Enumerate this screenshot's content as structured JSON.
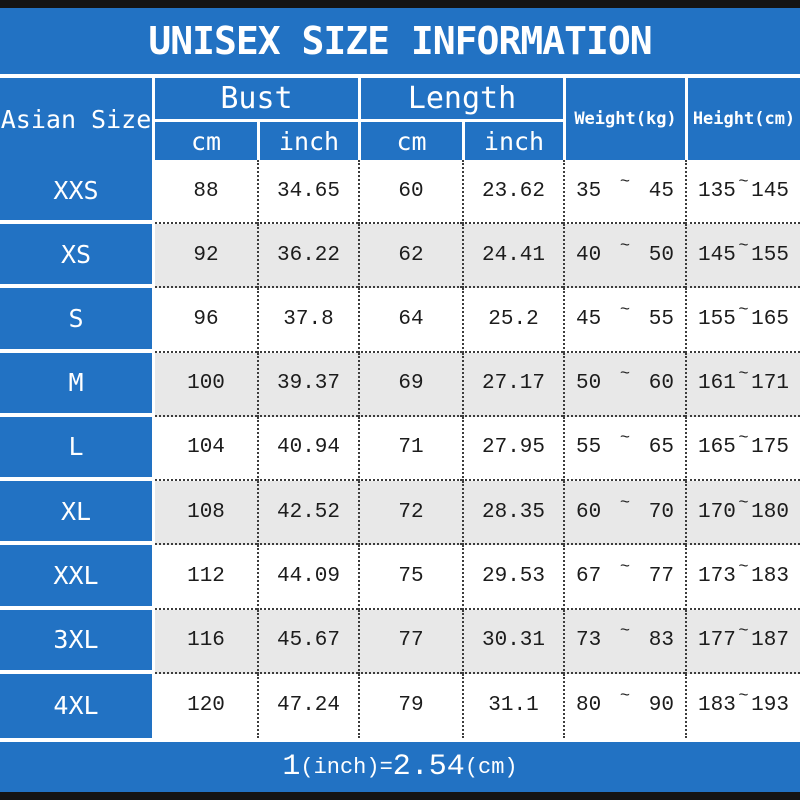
{
  "title": "UNISEX SIZE INFORMATION",
  "header": {
    "size": "Asian Size",
    "bust": "Bust",
    "length": "Length",
    "weight": "Weight(kg)",
    "height": "Height(cm)",
    "cm": "cm",
    "inch": "inch"
  },
  "symbols": {
    "tilde": "~"
  },
  "rows": [
    {
      "size": "XXS",
      "bust_cm": "88",
      "bust_inch": "34.65",
      "length_cm": "60",
      "length_inch": "23.62",
      "weight_min": "35",
      "weight_max": "45",
      "height_min": "135",
      "height_max": "145"
    },
    {
      "size": "XS",
      "bust_cm": "92",
      "bust_inch": "36.22",
      "length_cm": "62",
      "length_inch": "24.41",
      "weight_min": "40",
      "weight_max": "50",
      "height_min": "145",
      "height_max": "155"
    },
    {
      "size": "S",
      "bust_cm": "96",
      "bust_inch": "37.8",
      "length_cm": "64",
      "length_inch": "25.2",
      "weight_min": "45",
      "weight_max": "55",
      "height_min": "155",
      "height_max": "165"
    },
    {
      "size": "M",
      "bust_cm": "100",
      "bust_inch": "39.37",
      "length_cm": "69",
      "length_inch": "27.17",
      "weight_min": "50",
      "weight_max": "60",
      "height_min": "161",
      "height_max": "171"
    },
    {
      "size": "L",
      "bust_cm": "104",
      "bust_inch": "40.94",
      "length_cm": "71",
      "length_inch": "27.95",
      "weight_min": "55",
      "weight_max": "65",
      "height_min": "165",
      "height_max": "175"
    },
    {
      "size": "XL",
      "bust_cm": "108",
      "bust_inch": "42.52",
      "length_cm": "72",
      "length_inch": "28.35",
      "weight_min": "60",
      "weight_max": "70",
      "height_min": "170",
      "height_max": "180"
    },
    {
      "size": "XXL",
      "bust_cm": "112",
      "bust_inch": "44.09",
      "length_cm": "75",
      "length_inch": "29.53",
      "weight_min": "67",
      "weight_max": "77",
      "height_min": "173",
      "height_max": "183"
    },
    {
      "size": "3XL",
      "bust_cm": "116",
      "bust_inch": "45.67",
      "length_cm": "77",
      "length_inch": "30.31",
      "weight_min": "73",
      "weight_max": "83",
      "height_min": "177",
      "height_max": "187"
    },
    {
      "size": "4XL",
      "bust_cm": "120",
      "bust_inch": "47.24",
      "length_cm": "79",
      "length_inch": "31.1",
      "weight_min": "80",
      "weight_max": "90",
      "height_min": "183",
      "height_max": "193"
    }
  ],
  "footer": {
    "num1": "1",
    "unit1": "(inch)",
    "eq": "=",
    "num2": "2.54",
    "unit2": "(cm)"
  },
  "colors": {
    "accent_blue": "#2272c3",
    "row_alt_gray": "#e8e8e8",
    "bar_black": "#141414",
    "text_dark": "#1c1c1c",
    "line_white": "#ffffff",
    "dotted_line": "#3c3c3c"
  },
  "chart_data": {
    "type": "table",
    "title": "UNISEX SIZE INFORMATION",
    "columns": [
      "Asian Size",
      "Bust cm",
      "Bust inch",
      "Length cm",
      "Length inch",
      "Weight(kg)",
      "Height(cm)"
    ],
    "rows": [
      [
        "XXS",
        "88",
        "34.65",
        "60",
        "23.62",
        "35~45",
        "135~145"
      ],
      [
        "XS",
        "92",
        "36.22",
        "62",
        "24.41",
        "40~50",
        "145~155"
      ],
      [
        "S",
        "96",
        "37.8",
        "64",
        "25.2",
        "45~55",
        "155~165"
      ],
      [
        "M",
        "100",
        "39.37",
        "69",
        "27.17",
        "50~60",
        "161~171"
      ],
      [
        "L",
        "104",
        "40.94",
        "71",
        "27.95",
        "55~65",
        "165~175"
      ],
      [
        "XL",
        "108",
        "42.52",
        "72",
        "28.35",
        "60~70",
        "170~180"
      ],
      [
        "XXL",
        "112",
        "44.09",
        "75",
        "29.53",
        "67~77",
        "173~183"
      ],
      [
        "3XL",
        "116",
        "45.67",
        "77",
        "30.31",
        "73~83",
        "177~187"
      ],
      [
        "4XL",
        "120",
        "47.24",
        "79",
        "31.1",
        "80~90",
        "183~193"
      ]
    ],
    "footnote": "1(inch)=2.54(cm)"
  }
}
